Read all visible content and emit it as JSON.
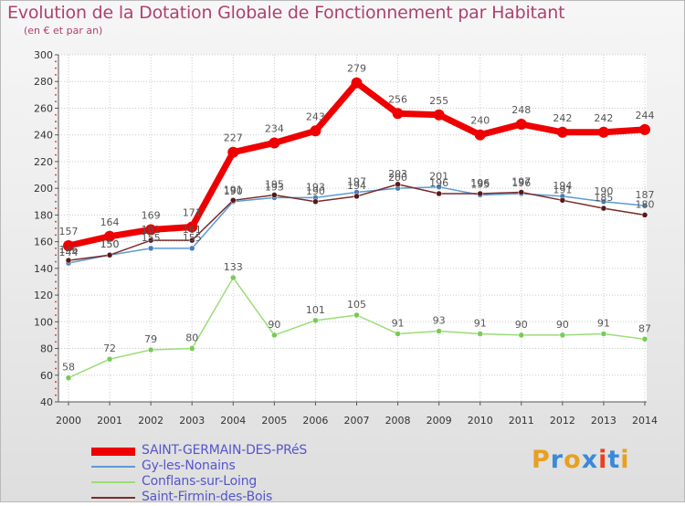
{
  "header": {
    "title": "Evolution de la Dotation Globale de Fonctionnement par Habitant",
    "subtitle": "(en € et par an)"
  },
  "brand": {
    "letters": [
      "P",
      "r",
      "o",
      "x",
      "i",
      "t",
      "i"
    ],
    "colors": [
      "#e8a020",
      "#3a8ad8",
      "#e8a020",
      "#3a8ad8",
      "#e84020",
      "#3a8ad8",
      "#e8a020"
    ]
  },
  "colors": {
    "grid": "#cccccc",
    "axis": "#555555",
    "tick_text": "#333333",
    "value_label": "#555555",
    "marker_minor": "#d22020"
  },
  "chart_data": {
    "type": "line",
    "title": "Evolution de la Dotation Globale de Fonctionnement par Habitant",
    "subtitle": "(en € et par an)",
    "xlabel": "",
    "ylabel": "",
    "x": [
      "2000",
      "2001",
      "2002",
      "2003",
      "2004",
      "2005",
      "2006",
      "2007",
      "2008",
      "2009",
      "2010",
      "2011",
      "2012",
      "2013",
      "2014"
    ],
    "ylim": [
      40,
      300
    ],
    "yticks": [
      "40",
      "60",
      "80",
      "100",
      "120",
      "140",
      "160",
      "180",
      "200",
      "220",
      "240",
      "260",
      "280",
      "300"
    ],
    "grid": true,
    "legend_position": "bottom-left",
    "series": [
      {
        "name": "Gy-les-Nonains",
        "color": "#5b9bd5",
        "marker": "#4a7fb5",
        "values": [
          144,
          150,
          155,
          155,
          190,
          193,
          193,
          197,
          200,
          201,
          195,
          196,
          194,
          190,
          187
        ],
        "labels": [
          "144",
          "150",
          "155",
          "155",
          "190",
          "193",
          "193",
          "197",
          "200",
          "201",
          "195",
          "196",
          "194",
          "190",
          "187"
        ]
      },
      {
        "name": "Conflans-sur-Loing",
        "color": "#99dd77",
        "marker": "#77cc55",
        "values": [
          58,
          72,
          79,
          80,
          133,
          90,
          101,
          105,
          91,
          93,
          91,
          90,
          90,
          91,
          87
        ],
        "labels": [
          "58",
          "72",
          "79",
          "80",
          "133",
          "90",
          "101",
          "105",
          "91",
          "93",
          "91",
          "90",
          "90",
          "91",
          "87"
        ]
      },
      {
        "name": "Saint-Firmin-des-Bois",
        "color": "#7a2a2a",
        "marker": "#5a1818",
        "values": [
          146,
          150,
          161,
          161,
          191,
          195,
          190,
          194,
          203,
          196,
          196,
          197,
          191,
          185,
          180
        ],
        "labels": [
          "146",
          "150",
          "161",
          "161",
          "191",
          "195",
          "190",
          "194",
          "203",
          "196",
          "196",
          "197",
          "191",
          "185",
          "180"
        ]
      },
      {
        "name": "SAINT-GERMAIN-DES-PRéS",
        "color": "#ee0000",
        "marker": "#ee0000",
        "values": [
          157,
          164,
          169,
          171,
          227,
          234,
          243,
          279,
          256,
          255,
          240,
          248,
          242,
          242,
          244
        ],
        "labels": [
          "157",
          "164",
          "169",
          "171",
          "227",
          "234",
          "243",
          "279",
          "256",
          "255",
          "240",
          "248",
          "242",
          "242",
          "244"
        ]
      }
    ],
    "legend_order": [
      "SAINT-GERMAIN-DES-PRéS",
      "Gy-les-Nonains",
      "Conflans-sur-Loing",
      "Saint-Firmin-des-Bois"
    ]
  }
}
